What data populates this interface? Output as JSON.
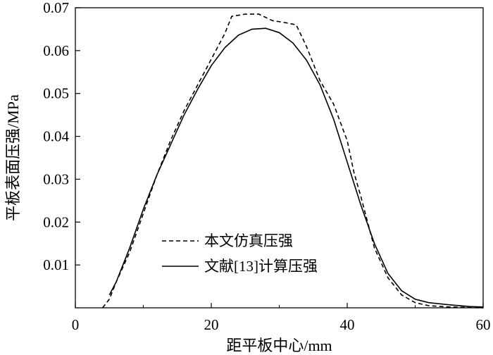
{
  "chart_data": {
    "type": "line",
    "xlabel": "距平板中心/mm",
    "ylabel": "平板表面压强/MPa",
    "xlim": [
      0,
      60
    ],
    "ylim": [
      0,
      0.07
    ],
    "xticks": [
      0,
      20,
      40,
      60
    ],
    "xtick_labels": [
      "0",
      "20",
      "40",
      "60"
    ],
    "yticks": [
      0.01,
      0.02,
      0.03,
      0.04,
      0.05,
      0.06,
      0.07
    ],
    "ytick_labels": [
      "0.01",
      "0.02",
      "0.03",
      "0.04",
      "0.05",
      "0.06",
      "0.07"
    ],
    "grid": false,
    "legend_position": "lower-left",
    "series": [
      {
        "name": "本文仿真压强",
        "style": "dashed",
        "color": "#000000",
        "x": [
          4,
          5,
          6,
          8,
          10,
          12,
          14,
          16,
          18,
          20,
          22,
          23,
          25,
          27,
          29,
          31,
          32.5,
          34,
          36,
          38,
          40,
          41,
          42,
          44,
          46,
          48,
          50,
          52,
          55,
          60
        ],
        "y": [
          0.0,
          0.002,
          0.006,
          0.013,
          0.022,
          0.031,
          0.039,
          0.046,
          0.052,
          0.058,
          0.064,
          0.068,
          0.0685,
          0.0685,
          0.067,
          0.0665,
          0.066,
          0.061,
          0.053,
          0.0475,
          0.039,
          0.0315,
          0.026,
          0.014,
          0.007,
          0.003,
          0.0012,
          0.0005,
          0.0002,
          0.0
        ]
      },
      {
        "name": "文献[13]计算压强",
        "style": "solid",
        "color": "#000000",
        "x": [
          5,
          6,
          8,
          10,
          12,
          14,
          16,
          18,
          20,
          22,
          24,
          26,
          28,
          30,
          32,
          34,
          36,
          38,
          40,
          42,
          44,
          46,
          48,
          50,
          52,
          55,
          58,
          60
        ],
        "y": [
          0.003,
          0.006,
          0.014,
          0.023,
          0.031,
          0.038,
          0.045,
          0.051,
          0.0565,
          0.0607,
          0.0636,
          0.065,
          0.0652,
          0.0642,
          0.0618,
          0.0578,
          0.052,
          0.044,
          0.034,
          0.024,
          0.015,
          0.008,
          0.004,
          0.002,
          0.0012,
          0.0007,
          0.0003,
          0.0002
        ]
      }
    ]
  }
}
